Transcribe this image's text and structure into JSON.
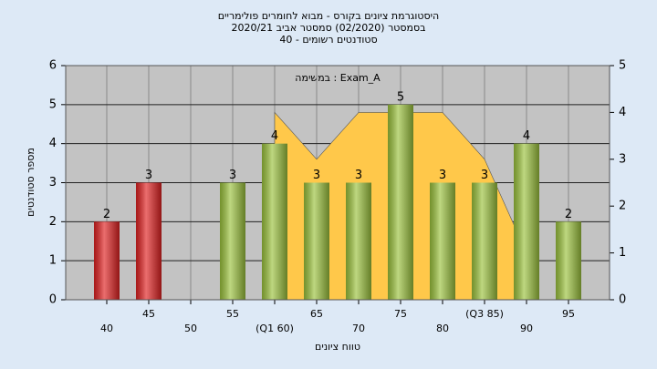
{
  "chart_data": {
    "type": "bar",
    "title": [
      "היסטוגרמת ציונים בקורס - מבוא לחומרים פולימריים",
      "בסמסטר  (02/2020)  סמסטר אביב 2020/21",
      "סטודנטים רשומים - 40"
    ],
    "annotation": "במשימה : Exam_A",
    "x_label": "טווח ציונים",
    "y_label": "מספר סטודנטים",
    "categories": [
      "40",
      "45",
      "50",
      "55",
      "(Q1 60)",
      "65",
      "70",
      "75",
      "80",
      "(Q3 85)",
      "90",
      "95"
    ],
    "values": [
      2,
      3,
      null,
      3,
      4,
      3,
      3,
      5,
      3,
      3,
      4,
      2
    ],
    "colors": [
      "#e02020",
      "#e02020",
      "#9bc23c",
      "#9bc23c",
      "#9bc23c",
      "#9bc23c",
      "#9bc23c",
      "#9bc23c",
      "#9bc23c",
      "#9bc23c",
      "#9bc23c",
      "#9bc23c"
    ],
    "area": {
      "color": "#ffc84a",
      "axis": "y2",
      "values": [
        null,
        null,
        null,
        null,
        4,
        3,
        4,
        4,
        4,
        3,
        1,
        null
      ]
    },
    "ylim": [
      0,
      6
    ],
    "yticks": [
      0,
      1,
      2,
      3,
      4,
      5,
      6
    ],
    "y2lim": [
      0,
      5
    ],
    "y2ticks": [
      0,
      1,
      2,
      3,
      4,
      5
    ],
    "grid": true
  }
}
